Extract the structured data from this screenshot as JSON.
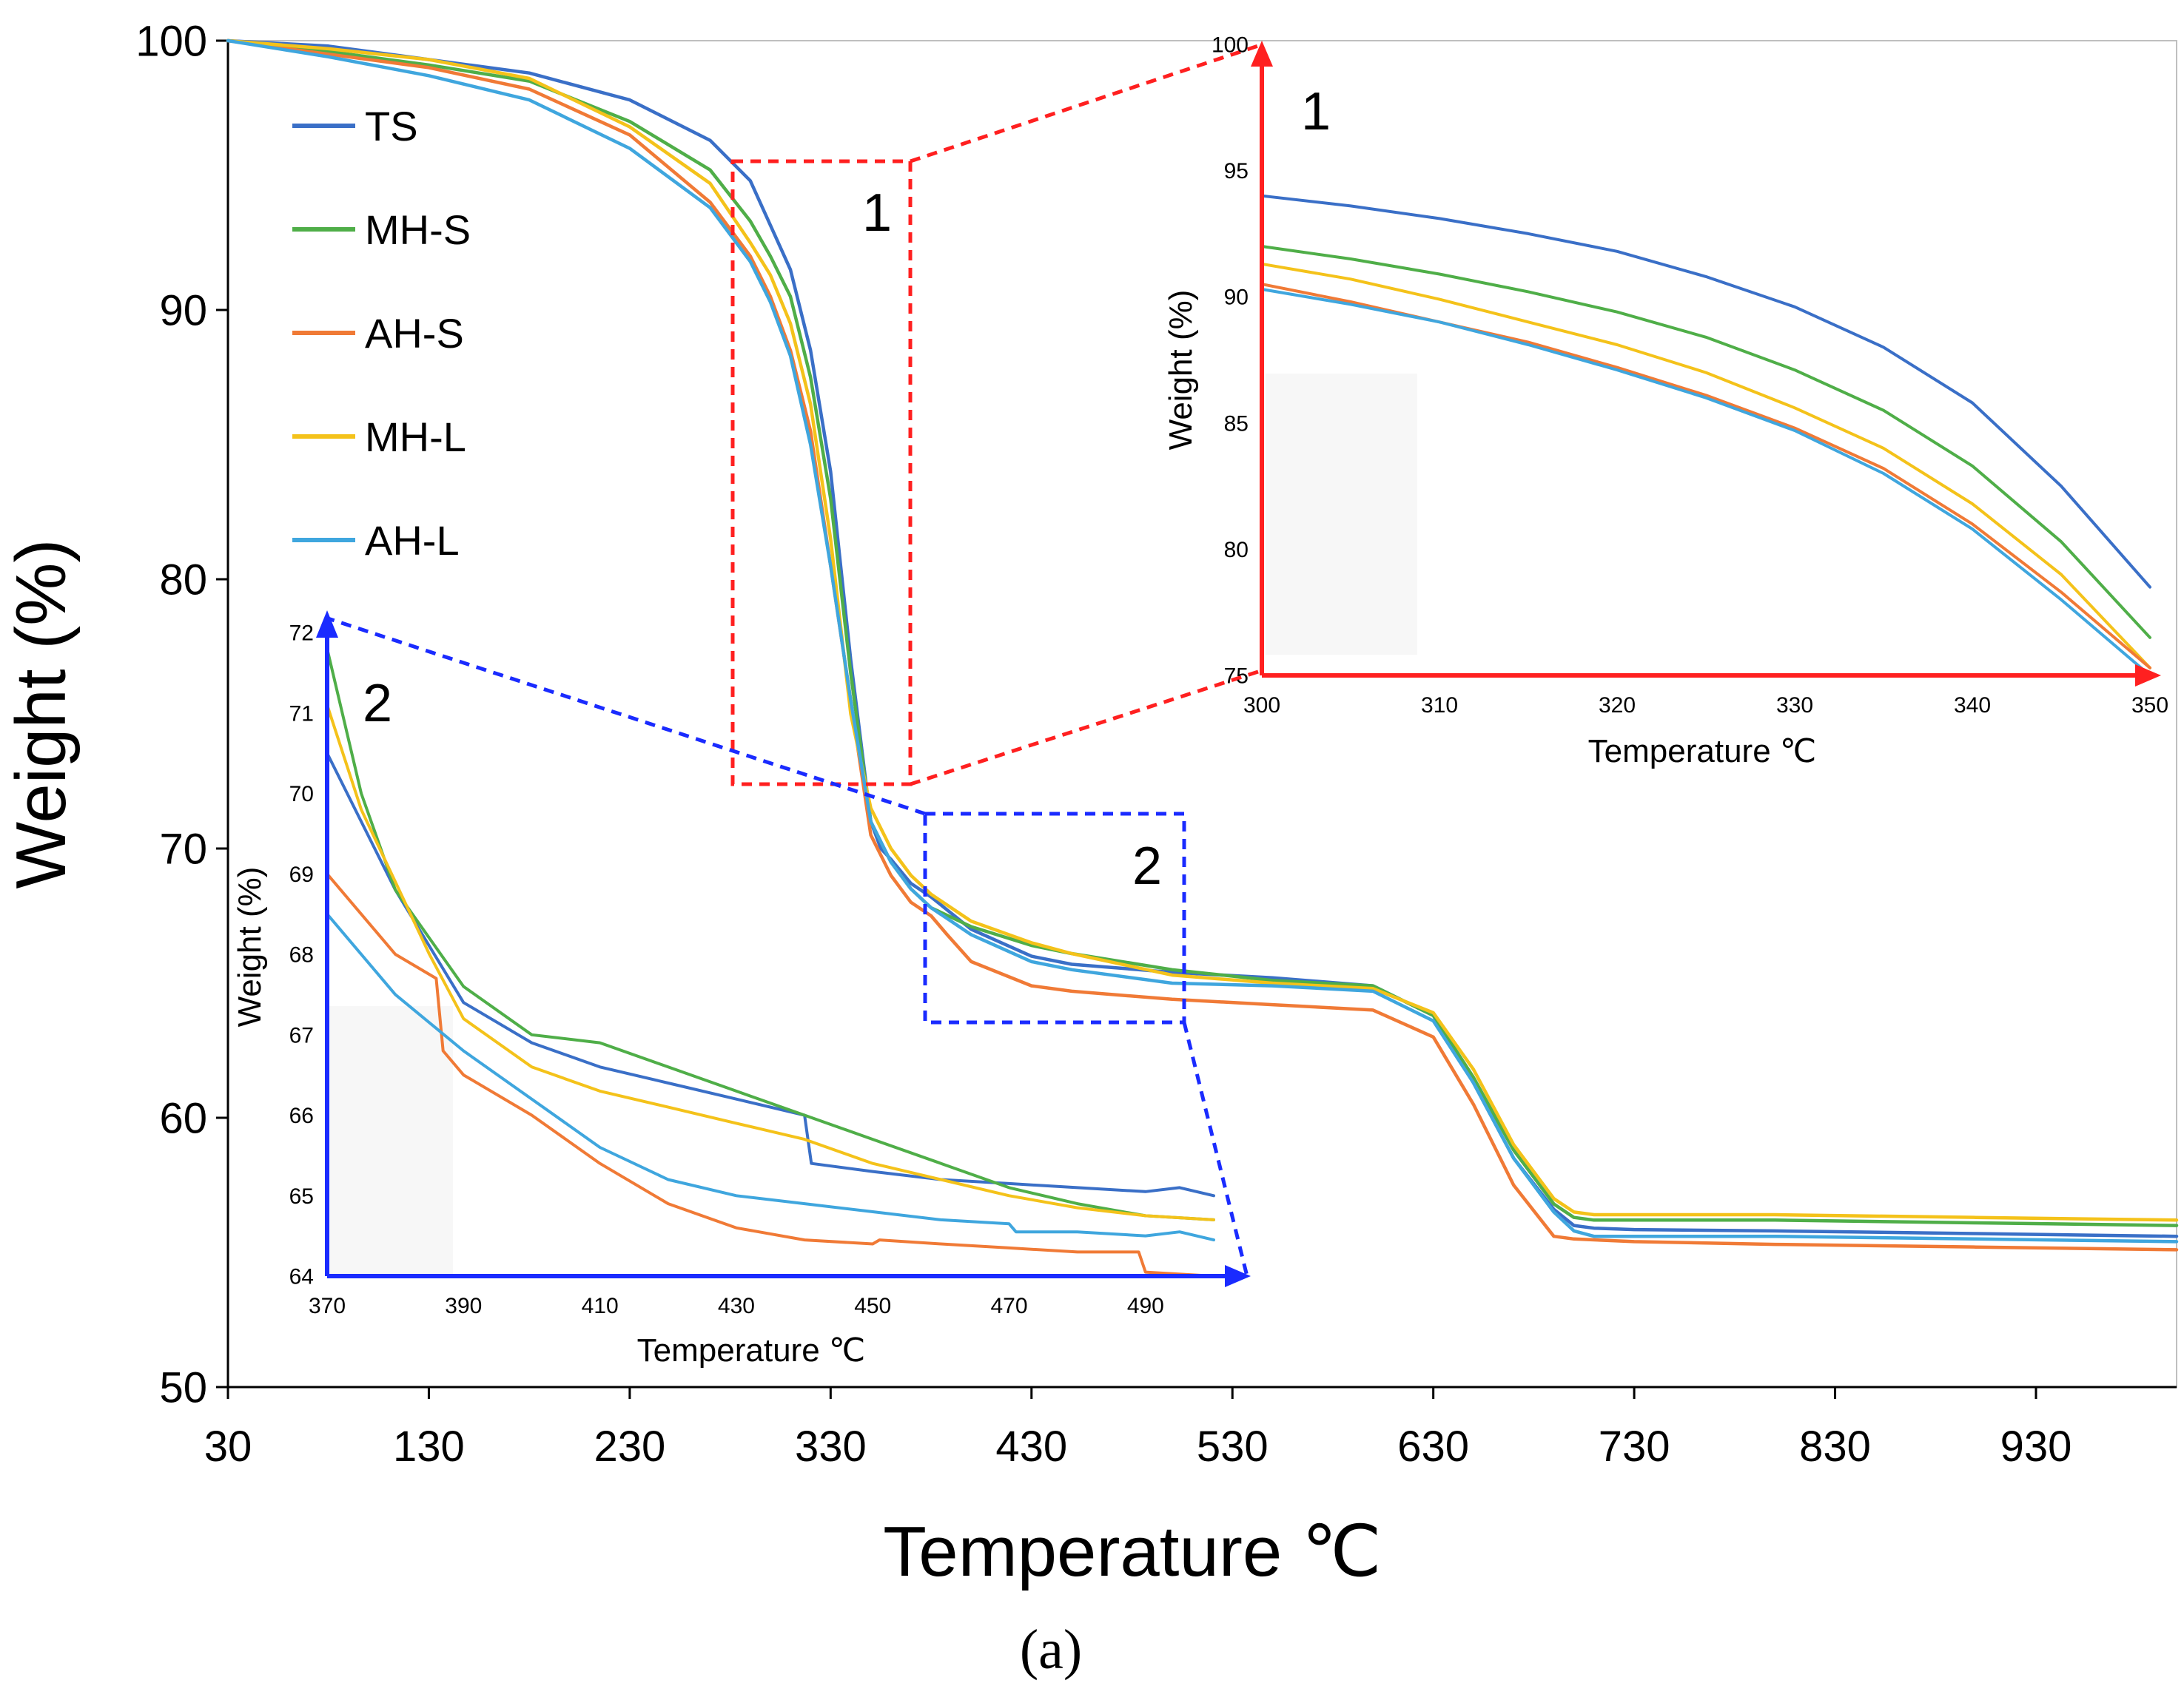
{
  "caption": "(a)",
  "colors": {
    "TS": "#3a6fc7",
    "MH-S": "#4fae48",
    "AH-S": "#f07a36",
    "MH-L": "#f4c21a",
    "AH-L": "#3fa6de",
    "zoom1": "#ff2020",
    "zoom2": "#1a2bff"
  },
  "chart_data": [
    {
      "id": "main",
      "type": "line",
      "xlabel": "Temperature ℃",
      "ylabel": "Weight (%)",
      "xlim": [
        30,
        1000
      ],
      "ylim": [
        50,
        100
      ],
      "xticks": [
        30,
        130,
        230,
        330,
        430,
        530,
        630,
        730,
        830,
        930
      ],
      "yticks": [
        50,
        60,
        70,
        80,
        90,
        100
      ],
      "legend": [
        "TS",
        "MH-S",
        "AH-S",
        "MH-L",
        "AH-L"
      ],
      "legend_position": "top-left",
      "zoom_regions": [
        {
          "label": "1",
          "x": [
            290,
            362
          ],
          "y": [
            72.3,
            95.5
          ]
        },
        {
          "label": "2",
          "x": [
            372,
            502
          ],
          "y": [
            63.5,
            71.4
          ]
        }
      ],
      "series": [
        {
          "name": "TS",
          "x": [
            30,
            80,
            130,
            180,
            230,
            270,
            290,
            310,
            320,
            330,
            340,
            350,
            355,
            360,
            370,
            380,
            400,
            430,
            450,
            500,
            550,
            600,
            630,
            650,
            670,
            690,
            700,
            710,
            730,
            800,
            900,
            1000
          ],
          "y": [
            100,
            99.8,
            99.3,
            98.8,
            97.8,
            96.3,
            94.8,
            91.5,
            88.5,
            84.0,
            77.0,
            71.0,
            70.0,
            69.6,
            68.7,
            68.2,
            67.0,
            66.0,
            65.7,
            65.4,
            65.2,
            64.9,
            63.8,
            61.3,
            58.5,
            56.6,
            56.0,
            55.9,
            55.85,
            55.8,
            55.7,
            55.6
          ]
        },
        {
          "name": "MH-S",
          "x": [
            30,
            80,
            130,
            180,
            230,
            270,
            290,
            300,
            310,
            320,
            330,
            340,
            350,
            360,
            370,
            380,
            400,
            430,
            450,
            500,
            550,
            600,
            630,
            650,
            670,
            690,
            700,
            710,
            730,
            800,
            900,
            1000
          ],
          "y": [
            100,
            99.6,
            99.1,
            98.5,
            97.0,
            95.2,
            93.3,
            92.0,
            90.5,
            87.5,
            83.0,
            76.5,
            71.0,
            69.5,
            68.5,
            67.8,
            67.1,
            66.4,
            66.1,
            65.5,
            65.1,
            64.9,
            63.8,
            61.5,
            58.8,
            56.8,
            56.3,
            56.2,
            56.2,
            56.2,
            56.1,
            56.0
          ]
        },
        {
          "name": "AH-S",
          "x": [
            30,
            80,
            130,
            180,
            230,
            270,
            290,
            300,
            310,
            320,
            330,
            340,
            350,
            360,
            370,
            380,
            388,
            400,
            430,
            450,
            500,
            550,
            600,
            630,
            650,
            670,
            690,
            700,
            730,
            800,
            900,
            1000
          ],
          "y": [
            100,
            99.5,
            99.0,
            98.2,
            96.5,
            94.0,
            92.0,
            90.5,
            88.5,
            85.5,
            80.5,
            75.5,
            70.5,
            69.0,
            68.0,
            67.5,
            66.8,
            65.8,
            64.9,
            64.7,
            64.4,
            64.2,
            64.0,
            63.0,
            60.5,
            57.5,
            55.6,
            55.5,
            55.4,
            55.3,
            55.2,
            55.1
          ]
        },
        {
          "name": "MH-L",
          "x": [
            30,
            80,
            130,
            180,
            230,
            270,
            290,
            300,
            310,
            320,
            330,
            340,
            350,
            360,
            370,
            380,
            400,
            430,
            450,
            500,
            550,
            600,
            630,
            650,
            670,
            690,
            700,
            710,
            730,
            800,
            900,
            1000
          ],
          "y": [
            100,
            99.7,
            99.3,
            98.6,
            96.8,
            94.7,
            92.5,
            91.3,
            89.5,
            86.5,
            81.5,
            75.0,
            71.5,
            70.0,
            69.0,
            68.3,
            67.3,
            66.5,
            66.1,
            65.3,
            65.0,
            64.8,
            63.9,
            61.8,
            59.0,
            57.0,
            56.5,
            56.4,
            56.4,
            56.4,
            56.3,
            56.2
          ]
        },
        {
          "name": "AH-L",
          "x": [
            30,
            80,
            130,
            180,
            230,
            270,
            290,
            300,
            310,
            320,
            330,
            340,
            350,
            360,
            370,
            380,
            400,
            430,
            450,
            500,
            550,
            600,
            630,
            650,
            670,
            690,
            700,
            710,
            730,
            800,
            900,
            1000
          ],
          "y": [
            100,
            99.4,
            98.7,
            97.8,
            96.0,
            93.8,
            91.8,
            90.3,
            88.3,
            85.0,
            80.5,
            75.5,
            71.0,
            69.5,
            68.5,
            67.8,
            66.8,
            65.8,
            65.5,
            65.0,
            64.9,
            64.7,
            63.6,
            61.3,
            58.5,
            56.5,
            55.8,
            55.6,
            55.6,
            55.6,
            55.5,
            55.4
          ]
        }
      ]
    },
    {
      "id": "inset1",
      "type": "line",
      "label": "1",
      "xlabel": "Temperature ℃",
      "ylabel": "Weight (%)",
      "xlim": [
        300,
        350
      ],
      "ylim": [
        75,
        100
      ],
      "xticks": [
        300,
        310,
        320,
        330,
        340,
        350
      ],
      "yticks": [
        75,
        80,
        85,
        90,
        95,
        100
      ],
      "series": [
        {
          "name": "TS",
          "x": [
            300,
            305,
            310,
            315,
            320,
            325,
            330,
            335,
            340,
            345,
            350
          ],
          "y": [
            94.0,
            93.6,
            93.1,
            92.5,
            91.8,
            90.8,
            89.6,
            88.0,
            85.8,
            82.5,
            78.5
          ]
        },
        {
          "name": "MH-S",
          "x": [
            300,
            305,
            310,
            315,
            320,
            325,
            330,
            335,
            340,
            345,
            350
          ],
          "y": [
            92.0,
            91.5,
            90.9,
            90.2,
            89.4,
            88.4,
            87.1,
            85.5,
            83.3,
            80.3,
            76.5
          ]
        },
        {
          "name": "MH-L",
          "x": [
            300,
            305,
            310,
            315,
            320,
            325,
            330,
            335,
            340,
            345,
            350
          ],
          "y": [
            91.3,
            90.7,
            89.9,
            89.0,
            88.1,
            87.0,
            85.6,
            84.0,
            81.8,
            79.0,
            75.3
          ]
        },
        {
          "name": "AH-S",
          "x": [
            300,
            305,
            310,
            315,
            320,
            325,
            330,
            335,
            340,
            345,
            350
          ],
          "y": [
            90.5,
            89.8,
            89.0,
            88.2,
            87.2,
            86.1,
            84.8,
            83.2,
            81.0,
            78.3,
            75.3
          ]
        },
        {
          "name": "AH-L",
          "x": [
            300,
            305,
            310,
            315,
            320,
            325,
            330,
            335,
            340,
            345,
            350
          ],
          "y": [
            90.3,
            89.7,
            89.0,
            88.1,
            87.1,
            86.0,
            84.7,
            83.0,
            80.8,
            78.0,
            75.0
          ]
        }
      ]
    },
    {
      "id": "inset2",
      "type": "line",
      "label": "2",
      "xlabel": "Temperature ℃",
      "ylabel": "Weight (%)",
      "xlim": [
        370,
        500
      ],
      "ylim": [
        64,
        72
      ],
      "xticks": [
        370,
        390,
        410,
        430,
        450,
        470,
        490
      ],
      "yticks": [
        64,
        65,
        66,
        67,
        68,
        69,
        70,
        71,
        72
      ],
      "series": [
        {
          "name": "TS",
          "x": [
            370,
            380,
            390,
            400,
            410,
            420,
            430,
            440,
            441,
            450,
            460,
            470,
            480,
            490,
            495,
            500
          ],
          "y": [
            70.5,
            68.8,
            67.4,
            66.9,
            66.6,
            66.4,
            66.2,
            66.0,
            65.4,
            65.3,
            65.2,
            65.15,
            65.1,
            65.05,
            65.1,
            65.0
          ]
        },
        {
          "name": "MH-S",
          "x": [
            370,
            375,
            380,
            390,
            400,
            410,
            420,
            430,
            440,
            450,
            460,
            470,
            480,
            490,
            500
          ],
          "y": [
            71.8,
            70.0,
            68.8,
            67.6,
            67.0,
            66.9,
            66.6,
            66.3,
            66.0,
            65.7,
            65.4,
            65.1,
            64.9,
            64.75,
            64.7
          ]
        },
        {
          "name": "AH-S",
          "x": [
            370,
            380,
            386,
            387,
            390,
            400,
            410,
            420,
            430,
            440,
            450,
            451,
            460,
            470,
            480,
            489,
            490,
            500
          ],
          "y": [
            69.0,
            68.0,
            67.7,
            66.8,
            66.5,
            66.0,
            65.4,
            64.9,
            64.6,
            64.45,
            64.4,
            64.45,
            64.4,
            64.35,
            64.3,
            64.3,
            64.05,
            64.0
          ]
        },
        {
          "name": "MH-L",
          "x": [
            370,
            375,
            380,
            385,
            390,
            400,
            410,
            420,
            430,
            440,
            450,
            460,
            470,
            480,
            490,
            500
          ],
          "y": [
            71.1,
            69.8,
            68.9,
            68.0,
            67.2,
            66.6,
            66.3,
            66.1,
            65.9,
            65.7,
            65.4,
            65.2,
            65.0,
            64.85,
            64.75,
            64.7
          ]
        },
        {
          "name": "AH-L",
          "x": [
            370,
            380,
            390,
            400,
            410,
            420,
            430,
            440,
            450,
            460,
            470,
            471,
            480,
            490,
            495,
            500
          ],
          "y": [
            68.5,
            67.5,
            66.8,
            66.2,
            65.6,
            65.2,
            65.0,
            64.9,
            64.8,
            64.7,
            64.65,
            64.55,
            64.55,
            64.5,
            64.55,
            64.45
          ]
        }
      ]
    }
  ]
}
